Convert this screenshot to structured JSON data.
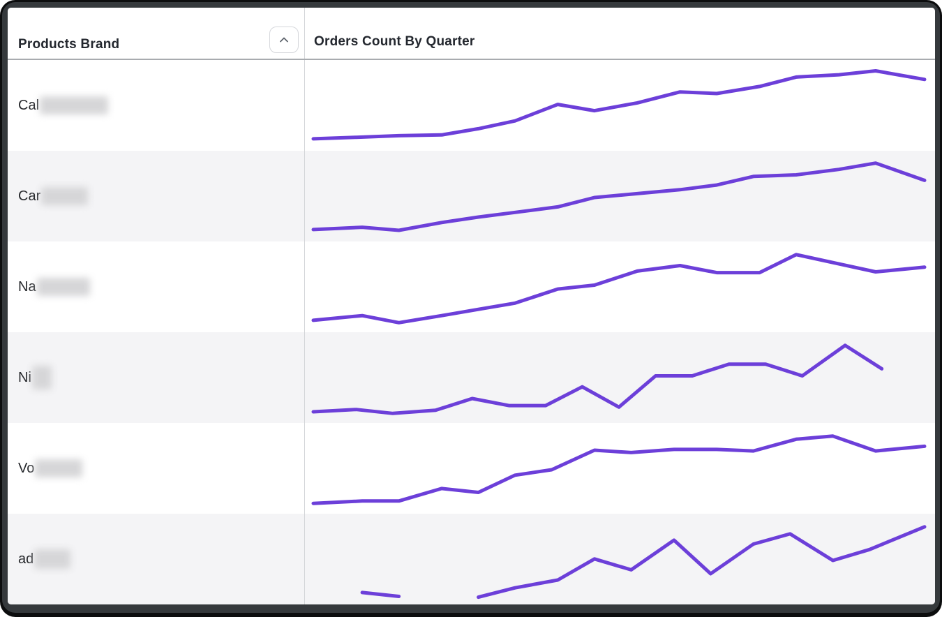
{
  "window": {
    "kind": "report-table-widget"
  },
  "colors": {
    "accent_line": "#6c3fd9",
    "frame": "#35393c",
    "frame_edge": "#0c0d0e",
    "row_alt_background": "#f4f4f6",
    "column_divider": "#d2d4d7",
    "header_underline": "#a8abaf",
    "text_primary": "#23272e"
  },
  "table": {
    "columns": [
      {
        "label": "Products Brand",
        "sort_icon": "chevron-up-icon",
        "sorted": "ascending"
      },
      {
        "label": "Orders Count By Quarter"
      }
    ],
    "rows": [
      {
        "brand_prefix": "Cal",
        "brand_redacted": true,
        "redacted_width": 98,
        "redacted_height": 26
      },
      {
        "brand_prefix": "Car",
        "brand_redacted": true,
        "redacted_width": 67,
        "redacted_height": 26
      },
      {
        "brand_prefix": "Na",
        "brand_redacted": true,
        "redacted_width": 76,
        "redacted_height": 26
      },
      {
        "brand_prefix": "Ni",
        "brand_redacted": true,
        "redacted_width": 28,
        "redacted_height": 34
      },
      {
        "brand_prefix": "Vo",
        "brand_redacted": true,
        "redacted_width": 68,
        "redacted_height": 26
      },
      {
        "brand_prefix": "ad",
        "brand_redacted": true,
        "redacted_width": 52,
        "redacted_height": 28
      }
    ]
  },
  "chart_data": [
    {
      "type": "line",
      "series_label": "Cal (redacted) orders by quarter",
      "x_unit": "quarter",
      "ylim": [
        0,
        100
      ],
      "grid": false,
      "axes_shown": false,
      "segments": [
        [
          [
            0,
            9
          ],
          [
            7,
            11
          ],
          [
            14,
            13
          ],
          [
            21,
            14
          ],
          [
            27,
            22
          ],
          [
            33,
            32
          ],
          [
            40,
            53
          ],
          [
            46,
            45
          ],
          [
            53,
            55
          ],
          [
            60,
            69
          ],
          [
            66,
            67
          ],
          [
            73,
            76
          ],
          [
            79,
            88
          ],
          [
            86,
            91
          ],
          [
            92,
            96
          ],
          [
            100,
            85
          ]
        ]
      ]
    },
    {
      "type": "line",
      "series_label": "Car (redacted) orders by quarter",
      "x_unit": "quarter",
      "ylim": [
        0,
        100
      ],
      "grid": false,
      "axes_shown": false,
      "segments": [
        [
          [
            0,
            9
          ],
          [
            8,
            12
          ],
          [
            14,
            8
          ],
          [
            21,
            18
          ],
          [
            27,
            25
          ],
          [
            33,
            31
          ],
          [
            40,
            38
          ],
          [
            46,
            50
          ],
          [
            53,
            55
          ],
          [
            60,
            60
          ],
          [
            66,
            66
          ],
          [
            72,
            77
          ],
          [
            79,
            79
          ],
          [
            86,
            86
          ],
          [
            92,
            94
          ],
          [
            100,
            72
          ]
        ]
      ]
    },
    {
      "type": "line",
      "series_label": "Na (redacted) orders by quarter",
      "x_unit": "quarter",
      "ylim": [
        0,
        100
      ],
      "grid": false,
      "axes_shown": false,
      "segments": [
        [
          [
            0,
            9
          ],
          [
            8,
            15
          ],
          [
            14,
            6
          ],
          [
            21,
            15
          ],
          [
            27,
            23
          ],
          [
            33,
            31
          ],
          [
            40,
            49
          ],
          [
            46,
            54
          ],
          [
            53,
            72
          ],
          [
            60,
            79
          ],
          [
            66,
            70
          ],
          [
            73,
            70
          ],
          [
            79,
            93
          ],
          [
            92,
            71
          ],
          [
            100,
            77
          ]
        ]
      ]
    },
    {
      "type": "line",
      "series_label": "Ni (redacted) orders by quarter",
      "x_unit": "quarter",
      "ylim": [
        0,
        100
      ],
      "grid": false,
      "axes_shown": false,
      "segments": [
        [
          [
            0,
            8
          ],
          [
            7,
            11
          ],
          [
            13,
            6
          ],
          [
            20,
            10
          ],
          [
            26,
            25
          ],
          [
            32,
            16
          ],
          [
            38,
            16
          ],
          [
            44,
            40
          ],
          [
            50,
            14
          ],
          [
            56,
            54
          ],
          [
            62,
            54
          ],
          [
            68,
            69
          ],
          [
            74,
            69
          ],
          [
            80,
            54
          ],
          [
            87,
            93
          ],
          [
            93,
            63
          ]
        ]
      ]
    },
    {
      "type": "line",
      "series_label": "Vo (redacted) orders by quarter",
      "x_unit": "quarter",
      "ylim": [
        0,
        100
      ],
      "grid": false,
      "axes_shown": false,
      "segments": [
        [
          [
            0,
            7
          ],
          [
            8,
            10
          ],
          [
            14,
            10
          ],
          [
            21,
            26
          ],
          [
            27,
            21
          ],
          [
            33,
            43
          ],
          [
            39,
            50
          ],
          [
            46,
            75
          ],
          [
            52,
            72
          ],
          [
            59,
            76
          ],
          [
            66,
            76
          ],
          [
            72,
            74
          ],
          [
            79,
            89
          ],
          [
            85,
            93
          ],
          [
            92,
            74
          ],
          [
            100,
            80
          ]
        ]
      ]
    },
    {
      "type": "line",
      "series_label": "ad (redacted) orders by quarter",
      "x_unit": "quarter",
      "ylim": [
        0,
        100
      ],
      "grid": false,
      "axes_shown": false,
      "segments": [
        [
          [
            8,
            9
          ],
          [
            14,
            4
          ]
        ],
        [
          [
            27,
            3
          ],
          [
            33,
            15
          ],
          [
            40,
            25
          ],
          [
            46,
            52
          ],
          [
            52,
            38
          ],
          [
            59,
            76
          ],
          [
            65,
            33
          ],
          [
            72,
            71
          ],
          [
            78,
            84
          ],
          [
            85,
            50
          ],
          [
            91,
            64
          ],
          [
            100,
            93
          ]
        ]
      ]
    }
  ]
}
